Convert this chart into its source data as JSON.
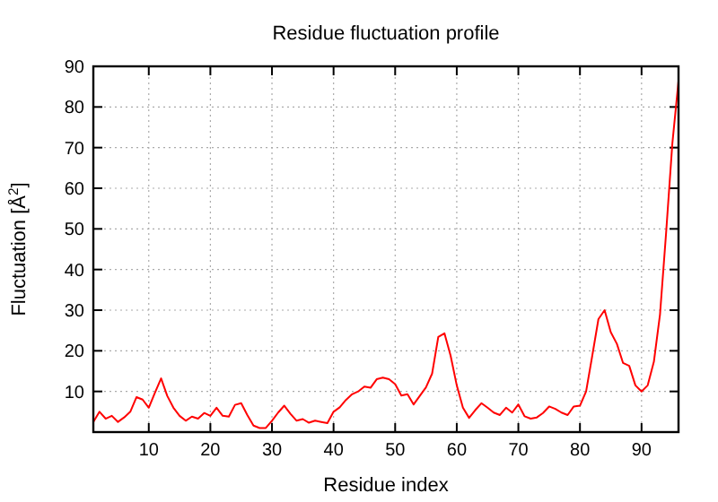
{
  "chart_data": {
    "type": "line",
    "title": "Residue fluctuation profile",
    "xlabel": "Residue index",
    "ylabel": "Fluctuation [Å$^{2}$]",
    "x": [
      1,
      2,
      3,
      4,
      5,
      6,
      7,
      8,
      9,
      10,
      11,
      12,
      13,
      14,
      15,
      16,
      17,
      18,
      19,
      20,
      21,
      22,
      23,
      24,
      25,
      26,
      27,
      28,
      29,
      30,
      31,
      32,
      33,
      34,
      35,
      36,
      37,
      38,
      39,
      40,
      41,
      42,
      43,
      44,
      45,
      46,
      47,
      48,
      49,
      50,
      51,
      52,
      53,
      54,
      55,
      56,
      57,
      58,
      59,
      60,
      61,
      62,
      63,
      64,
      65,
      66,
      67,
      68,
      69,
      70,
      71,
      72,
      73,
      74,
      75,
      76,
      77,
      78,
      79,
      80,
      81,
      82,
      83,
      84,
      85,
      86,
      87,
      88,
      89,
      90,
      91,
      92,
      93,
      94,
      95,
      96
    ],
    "series": [
      {
        "color": "#ff0000",
        "values": [
          2.5,
          5,
          3.3,
          4,
          2.5,
          3.6,
          5,
          8.6,
          8,
          6,
          9.7,
          13.2,
          8.9,
          6,
          4,
          2.8,
          3.8,
          3.3,
          4.7,
          4,
          6,
          4,
          3.8,
          6.7,
          7.1,
          4.2,
          1.6,
          1,
          1,
          2.8,
          4.8,
          6.5,
          4.5,
          2.8,
          3.2,
          2.3,
          2.8,
          2.5,
          2.2,
          5,
          6.1,
          7.9,
          9.3,
          10,
          11.2,
          10.9,
          13,
          13.4,
          13,
          11.8,
          9,
          9.3,
          6.8,
          8.9,
          11,
          14.4,
          23.4,
          24.3,
          18.8,
          11.5,
          6,
          3.5,
          5.4,
          7.1,
          6,
          4.8,
          4.2,
          6,
          4.8,
          6.8,
          3.9,
          3.3,
          3.6,
          4.7,
          6.3,
          5.7,
          4.8,
          4.2,
          6.3,
          6.5,
          10,
          18.8,
          27.8,
          30,
          24.6,
          21.7,
          17,
          16.3,
          11.5,
          10,
          11.5,
          17.3,
          29,
          49.3,
          71,
          86.4
        ]
      }
    ],
    "xlim": [
      1,
      96
    ],
    "ylim": [
      0,
      90
    ],
    "xticks": [
      10,
      20,
      30,
      40,
      50,
      60,
      70,
      80,
      90
    ],
    "yticks": [
      10,
      20,
      30,
      40,
      50,
      60,
      70,
      80,
      90
    ],
    "grid": true,
    "line_style": "solid"
  }
}
